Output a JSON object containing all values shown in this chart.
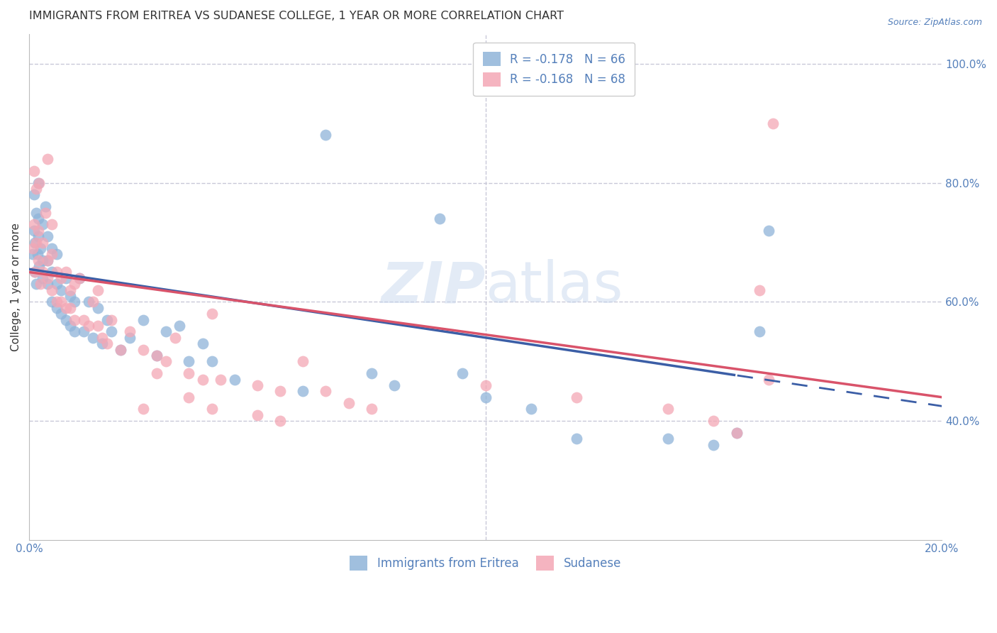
{
  "title": "IMMIGRANTS FROM ERITREA VS SUDANESE COLLEGE, 1 YEAR OR MORE CORRELATION CHART",
  "source": "Source: ZipAtlas.com",
  "ylabel": "College, 1 year or more",
  "legend_line1": "R = -0.178   N = 66",
  "legend_line2": "R = -0.168   N = 68",
  "legend_label1": "Immigrants from Eritrea",
  "legend_label2": "Sudanese",
  "blue_color": "#8FB4D9",
  "pink_color": "#F4A7B5",
  "blue_line_color": "#3B5EA6",
  "pink_line_color": "#D9536A",
  "grid_color": "#C8C8D8",
  "text_color": "#5580BB",
  "title_color": "#333333",
  "watermark_color": "#C8D8EE",
  "x_min": 0.0,
  "x_max": 0.2,
  "y_min": 0.2,
  "y_max": 1.05,
  "blue_intercept": 0.655,
  "blue_slope": -1.15,
  "pink_intercept": 0.65,
  "pink_slope": -1.05,
  "blue_points_x": [
    0.0008,
    0.001,
    0.001,
    0.0012,
    0.0013,
    0.0015,
    0.0015,
    0.0018,
    0.002,
    0.002,
    0.002,
    0.0022,
    0.0025,
    0.003,
    0.003,
    0.003,
    0.0035,
    0.004,
    0.004,
    0.004,
    0.005,
    0.005,
    0.005,
    0.006,
    0.006,
    0.006,
    0.007,
    0.007,
    0.008,
    0.008,
    0.009,
    0.009,
    0.01,
    0.01,
    0.011,
    0.012,
    0.013,
    0.014,
    0.015,
    0.016,
    0.017,
    0.018,
    0.02,
    0.022,
    0.025,
    0.028,
    0.03,
    0.033,
    0.035,
    0.038,
    0.04,
    0.045,
    0.06,
    0.065,
    0.075,
    0.08,
    0.09,
    0.095,
    0.1,
    0.11,
    0.12,
    0.14,
    0.15,
    0.155,
    0.16,
    0.162
  ],
  "blue_points_y": [
    0.68,
    0.72,
    0.78,
    0.65,
    0.7,
    0.75,
    0.63,
    0.68,
    0.71,
    0.74,
    0.8,
    0.66,
    0.69,
    0.64,
    0.67,
    0.73,
    0.76,
    0.63,
    0.67,
    0.71,
    0.6,
    0.65,
    0.69,
    0.59,
    0.63,
    0.68,
    0.58,
    0.62,
    0.57,
    0.64,
    0.56,
    0.61,
    0.55,
    0.6,
    0.64,
    0.55,
    0.6,
    0.54,
    0.59,
    0.53,
    0.57,
    0.55,
    0.52,
    0.54,
    0.57,
    0.51,
    0.55,
    0.56,
    0.5,
    0.53,
    0.5,
    0.47,
    0.45,
    0.88,
    0.48,
    0.46,
    0.74,
    0.48,
    0.44,
    0.42,
    0.37,
    0.37,
    0.36,
    0.38,
    0.55,
    0.72
  ],
  "pink_points_x": [
    0.0008,
    0.001,
    0.001,
    0.0012,
    0.0015,
    0.0015,
    0.002,
    0.002,
    0.0022,
    0.0025,
    0.003,
    0.003,
    0.0035,
    0.004,
    0.004,
    0.004,
    0.005,
    0.005,
    0.005,
    0.006,
    0.006,
    0.007,
    0.007,
    0.008,
    0.008,
    0.009,
    0.009,
    0.01,
    0.01,
    0.011,
    0.012,
    0.013,
    0.014,
    0.015,
    0.015,
    0.016,
    0.017,
    0.018,
    0.02,
    0.022,
    0.025,
    0.028,
    0.03,
    0.032,
    0.035,
    0.038,
    0.04,
    0.042,
    0.05,
    0.055,
    0.06,
    0.065,
    0.07,
    0.025,
    0.028,
    0.035,
    0.04,
    0.05,
    0.055,
    0.075,
    0.1,
    0.12,
    0.14,
    0.15,
    0.155,
    0.16,
    0.162,
    0.163
  ],
  "pink_points_y": [
    0.69,
    0.73,
    0.82,
    0.65,
    0.79,
    0.7,
    0.67,
    0.72,
    0.8,
    0.63,
    0.65,
    0.7,
    0.75,
    0.64,
    0.67,
    0.84,
    0.62,
    0.68,
    0.73,
    0.6,
    0.65,
    0.6,
    0.64,
    0.59,
    0.65,
    0.59,
    0.62,
    0.57,
    0.63,
    0.64,
    0.57,
    0.56,
    0.6,
    0.56,
    0.62,
    0.54,
    0.53,
    0.57,
    0.52,
    0.55,
    0.52,
    0.51,
    0.5,
    0.54,
    0.48,
    0.47,
    0.58,
    0.47,
    0.46,
    0.45,
    0.5,
    0.45,
    0.43,
    0.42,
    0.48,
    0.44,
    0.42,
    0.41,
    0.4,
    0.42,
    0.46,
    0.44,
    0.42,
    0.4,
    0.38,
    0.62,
    0.47,
    0.9
  ]
}
